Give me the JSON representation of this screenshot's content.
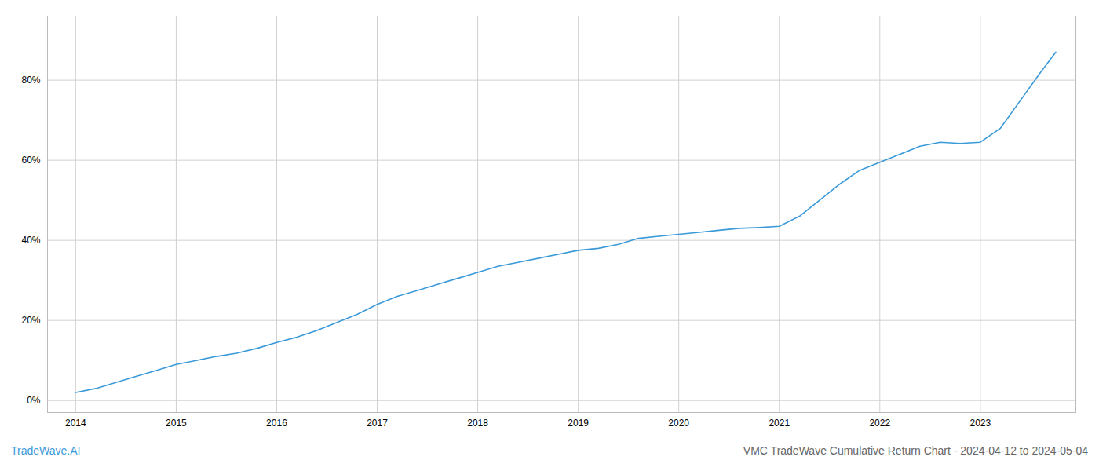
{
  "chart_data": {
    "type": "line",
    "title": "VMC TradeWave Cumulative Return Chart - 2024-04-12 to 2024-05-04",
    "annotations": [
      {
        "text": "TradeWave.AI",
        "color": "#3a9ad9"
      }
    ],
    "color": "#3a9ad9",
    "x": [
      2014.0,
      2014.2,
      2014.4,
      2014.6,
      2014.8,
      2015.0,
      2015.2,
      2015.4,
      2015.6,
      2015.8,
      2016.0,
      2016.2,
      2016.4,
      2016.6,
      2016.8,
      2017.0,
      2017.2,
      2017.4,
      2017.6,
      2017.8,
      2018.0,
      2018.2,
      2018.4,
      2018.6,
      2018.8,
      2019.0,
      2019.2,
      2019.4,
      2019.6,
      2019.8,
      2020.0,
      2020.2,
      2020.4,
      2020.6,
      2020.8,
      2021.0,
      2021.2,
      2021.4,
      2021.6,
      2021.8,
      2022.0,
      2022.2,
      2022.4,
      2022.6,
      2022.8,
      2023.0,
      2023.2,
      2023.4,
      2023.6,
      2023.75
    ],
    "values": [
      2.0,
      3.0,
      4.5,
      6.0,
      7.5,
      9.0,
      10.0,
      11.0,
      11.8,
      13.0,
      14.5,
      15.8,
      17.5,
      19.5,
      21.5,
      24.0,
      26.0,
      27.5,
      29.0,
      30.5,
      32.0,
      33.5,
      34.5,
      35.5,
      36.5,
      37.5,
      38.0,
      39.0,
      40.5,
      41.0,
      41.5,
      42.0,
      42.5,
      43.0,
      43.2,
      43.5,
      46.0,
      50.0,
      54.0,
      57.5,
      59.5,
      61.5,
      63.5,
      64.5,
      64.2,
      64.5,
      68.0,
      75.0,
      82.0,
      87.0
    ],
    "xlim": [
      2013.72,
      2023.95
    ],
    "ylim": [
      -3,
      96
    ],
    "xticks": [
      2014,
      2015,
      2016,
      2017,
      2018,
      2019,
      2020,
      2021,
      2022,
      2023
    ],
    "yticks": [
      {
        "value": 0,
        "label": "0%"
      },
      {
        "value": 20,
        "label": "20%"
      },
      {
        "value": 40,
        "label": "40%"
      },
      {
        "value": 60,
        "label": "60%"
      },
      {
        "value": 80,
        "label": "80%"
      }
    ],
    "grid": true
  }
}
